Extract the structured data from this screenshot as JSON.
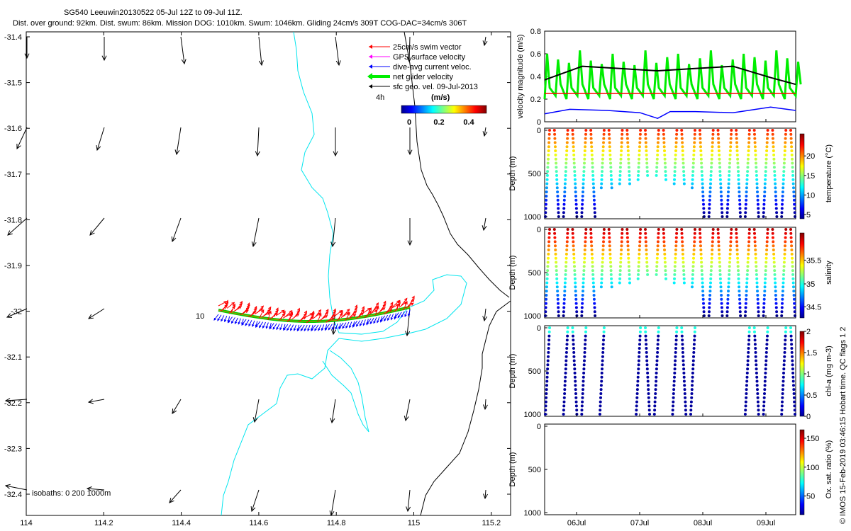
{
  "title": {
    "line1": "SG540 Leeuwin20130522 05-Jul 12Z to 09-Jul 11Z.",
    "line2": "Dist. over ground: 92km. Dist. swum: 86km. Mission DOG: 1010km. Swum: 1046km. Gliding 24cm/s 309T COG-DAC=34cm/s 306T"
  },
  "legend": {
    "items": [
      {
        "label": "25cm/s swim vector",
        "color": "#ff0000"
      },
      {
        "label": "GPS surface velocity",
        "color": "#ff00ff"
      },
      {
        "label": "dive-avg current veloc.",
        "color": "#0000ff"
      },
      {
        "label": "net glider velocity",
        "color": "#00ee00"
      },
      {
        "label": "sfc geo. vel. 09-Jul-2013",
        "color": "#000000"
      }
    ],
    "interval_label": "4h",
    "colorbar_units": "(m/s)",
    "colorbar_ticks": [
      "0",
      "0.2",
      "0.4"
    ]
  },
  "map": {
    "isobaths_label": "isobaths: 0   200  1000m",
    "track_label": "10",
    "xticks": [
      "114",
      "114.2",
      "114.4",
      "114.6",
      "114.8",
      "115",
      "115.2"
    ],
    "yticks": [
      "-31.4",
      "-31.5",
      "-31.6",
      "-31.7",
      "-31.8",
      "-31.9",
      "-32",
      "-32.1",
      "-32.2",
      "-32.3",
      "-32.4"
    ]
  },
  "chart_data": [
    {
      "type": "line",
      "panel": "velocity",
      "ylabel": "velocity magnitude (m/s)",
      "ylim": [
        0,
        0.8
      ],
      "yticks": [
        "0",
        "0.2",
        "0.4",
        "0.6",
        "0.8"
      ],
      "series": [
        {
          "name": "sfc geo. vel.",
          "color": "#000000",
          "x": [
            0,
            0.15,
            0.3,
            0.45,
            0.6,
            0.75,
            0.9,
            1.0
          ],
          "values": [
            0.37,
            0.49,
            0.47,
            0.45,
            0.47,
            0.49,
            0.39,
            0.33
          ]
        },
        {
          "name": "swim speed",
          "color": "#ff0000",
          "x": [
            0,
            1.0
          ],
          "values": [
            0.25,
            0.25
          ]
        },
        {
          "name": "dive-avg current",
          "color": "#0000ff",
          "x": [
            0,
            0.1,
            0.25,
            0.38,
            0.45,
            0.5,
            0.6,
            0.75,
            0.9,
            1.0
          ],
          "values": [
            0.07,
            0.11,
            0.1,
            0.08,
            0.03,
            0.09,
            0.09,
            0.08,
            0.13,
            0.1
          ]
        },
        {
          "name": "net glider velocity",
          "color": "#00ee00",
          "x": [
            0,
            0.1,
            0.15,
            0.2,
            0.3,
            0.4,
            0.5,
            0.6,
            0.7,
            0.8,
            0.9,
            1.0
          ],
          "values": [
            0.35,
            0.33,
            0.64,
            0.25,
            0.5,
            0.32,
            0.55,
            0.28,
            0.6,
            0.25,
            0.66,
            0.3
          ]
        }
      ]
    },
    {
      "type": "scatter",
      "panel": "temperature",
      "ylabel": "Depth (m)",
      "cbar_label": "temperature (°C)",
      "yticks": [
        "0",
        "500",
        "1000"
      ],
      "cbar_ticks": [
        "5",
        "10",
        "15",
        "20"
      ]
    },
    {
      "type": "scatter",
      "panel": "salinity",
      "ylabel": "Depth (m)",
      "cbar_label": "salinity",
      "yticks": [
        "0",
        "500",
        "1000"
      ],
      "cbar_ticks": [
        "34.5",
        "35",
        "35.5"
      ]
    },
    {
      "type": "scatter",
      "panel": "chla",
      "ylabel": "Depth (m)",
      "cbar_label": "chl-a (mg m-3)",
      "yticks": [
        "0",
        "500",
        "1000"
      ],
      "cbar_ticks": [
        "0",
        "0.5",
        "1",
        "1.5",
        "2"
      ]
    },
    {
      "type": "scatter",
      "panel": "oxygen",
      "ylabel": "Depth (m)",
      "cbar_label": "Ox. sat. ratio (%)",
      "yticks": [
        "0",
        "500",
        "1000"
      ],
      "cbar_ticks": [
        "50",
        "100",
        "150"
      ],
      "xticks": [
        "06Jul",
        "07Jul",
        "08Jul",
        "09Jul"
      ]
    }
  ],
  "footer": "© IMOS 15-Feb-2019 03:46:15 Hobart time. QC flags 1  2"
}
